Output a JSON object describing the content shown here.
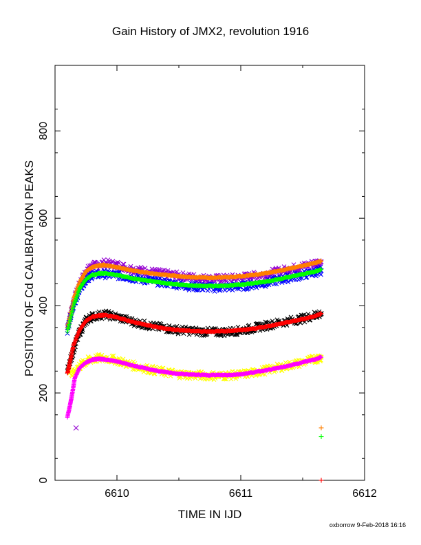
{
  "chart_data": {
    "type": "scatter",
    "title": "Gain History of JMX2, revolution 1916",
    "xlabel": "TIME IN IJD",
    "ylabel": "POSITION OF Cd CALIBRATION PEAKS",
    "xlim": [
      6609.5,
      6612
    ],
    "ylim": [
      0,
      950
    ],
    "xticks": [
      6610,
      6611,
      6612
    ],
    "yticks": [
      0,
      200,
      400,
      600,
      800
    ],
    "grid": false,
    "legend": "none",
    "series": [
      {
        "color": "#9400D3",
        "marker": "x",
        "x": [
          6609.6,
          6609.65,
          6609.7,
          6609.75,
          6609.8,
          6609.9,
          6610.0,
          6610.1,
          6610.2,
          6610.3,
          6610.4,
          6610.5,
          6610.6,
          6610.7,
          6610.8,
          6610.9,
          6611.0,
          6611.1,
          6611.2,
          6611.3,
          6611.4,
          6611.5,
          6611.6,
          6611.65
        ],
        "y": [
          350,
          410,
          450,
          478,
          490,
          497,
          493,
          485,
          480,
          476,
          472,
          468,
          465,
          462,
          461,
          462,
          464,
          468,
          472,
          478,
          484,
          490,
          497,
          500
        ]
      },
      {
        "color": "#0000FF",
        "marker": "x",
        "x": [
          6609.6,
          6609.65,
          6609.7,
          6609.75,
          6609.8,
          6609.9,
          6610.0,
          6610.1,
          6610.2,
          6610.3,
          6610.4,
          6610.5,
          6610.6,
          6610.7,
          6610.8,
          6610.9,
          6611.0,
          6611.1,
          6611.2,
          6611.3,
          6611.4,
          6611.5,
          6611.6,
          6611.65
        ],
        "y": [
          345,
          400,
          440,
          462,
          470,
          472,
          470,
          465,
          460,
          456,
          452,
          448,
          444,
          442,
          441,
          442,
          444,
          448,
          452,
          458,
          464,
          470,
          476,
          480
        ]
      },
      {
        "color": "#000000",
        "marker": "x",
        "x": [
          6609.6,
          6609.65,
          6609.7,
          6609.75,
          6609.8,
          6609.9,
          6610.0,
          6610.1,
          6610.2,
          6610.3,
          6610.4,
          6610.5,
          6610.6,
          6610.7,
          6610.8,
          6610.9,
          6611.0,
          6611.1,
          6611.2,
          6611.3,
          6611.4,
          6611.5,
          6611.6,
          6611.65
        ],
        "y": [
          250,
          300,
          340,
          365,
          375,
          380,
          374,
          365,
          358,
          352,
          348,
          344,
          342,
          340,
          339,
          340,
          343,
          348,
          354,
          360,
          365,
          370,
          378,
          382
        ]
      },
      {
        "color": "#FFFF00",
        "marker": "x",
        "x": [
          6609.62,
          6609.7,
          6609.75,
          6609.8,
          6609.9,
          6610.0,
          6610.1,
          6610.2,
          6610.3,
          6610.4,
          6610.5,
          6610.6,
          6610.7,
          6610.8,
          6610.9,
          6611.0,
          6611.1,
          6611.2,
          6611.3,
          6611.4,
          6611.5,
          6611.6,
          6611.65
        ],
        "y": [
          240,
          262,
          272,
          278,
          280,
          275,
          265,
          258,
          252,
          247,
          243,
          241,
          240,
          239,
          240,
          242,
          246,
          252,
          258,
          264,
          270,
          278,
          282
        ]
      },
      {
        "color": "#FF7F00",
        "marker": "+",
        "x": [
          6609.6,
          6609.65,
          6609.7,
          6609.75,
          6609.8,
          6609.85,
          6609.9,
          6610.0,
          6610.1,
          6610.2,
          6610.3,
          6610.4,
          6610.5,
          6610.6,
          6610.7,
          6610.8,
          6610.9,
          6611.0,
          6611.1,
          6611.2,
          6611.3,
          6611.4,
          6611.5,
          6611.6,
          6611.65
        ],
        "y": [
          350,
          415,
          455,
          478,
          488,
          492,
          493,
          488,
          482,
          477,
          473,
          470,
          467,
          465,
          464,
          464,
          465,
          467,
          470,
          474,
          479,
          485,
          491,
          498,
          502
        ]
      },
      {
        "color": "#00FF00",
        "marker": "+",
        "x": [
          6609.6,
          6609.65,
          6609.7,
          6609.75,
          6609.8,
          6609.85,
          6609.9,
          6610.0,
          6610.1,
          6610.2,
          6610.3,
          6610.4,
          6610.5,
          6610.6,
          6610.7,
          6610.8,
          6610.9,
          6611.0,
          6611.1,
          6611.2,
          6611.3,
          6611.4,
          6611.5,
          6611.6,
          6611.65
        ],
        "y": [
          340,
          400,
          440,
          460,
          470,
          473,
          474,
          470,
          464,
          459,
          455,
          451,
          448,
          446,
          445,
          445,
          446,
          448,
          451,
          455,
          460,
          466,
          472,
          478,
          483
        ]
      },
      {
        "color": "#FF0000",
        "marker": "+",
        "x": [
          6609.6,
          6609.62,
          6609.65,
          6609.7,
          6609.75,
          6609.8,
          6609.85,
          6609.9,
          6610.0,
          6610.1,
          6610.2,
          6610.3,
          6610.4,
          6610.5,
          6610.6,
          6610.7,
          6610.8,
          6610.9,
          6611.0,
          6611.1,
          6611.2,
          6611.3,
          6611.4,
          6611.5,
          6611.6,
          6611.65
        ],
        "y": [
          245,
          270,
          310,
          345,
          365,
          374,
          377,
          378,
          373,
          365,
          358,
          352,
          347,
          344,
          342,
          341,
          341,
          342,
          344,
          347,
          352,
          357,
          363,
          369,
          376,
          382
        ]
      },
      {
        "color": "#FF00FF",
        "marker": "+",
        "x": [
          6609.6,
          6609.62,
          6609.64,
          6609.66,
          6609.7,
          6609.75,
          6609.8,
          6609.85,
          6609.9,
          6610.0,
          6610.1,
          6610.2,
          6610.3,
          6610.4,
          6610.5,
          6610.6,
          6610.7,
          6610.8,
          6610.9,
          6611.0,
          6611.1,
          6611.2,
          6611.3,
          6611.4,
          6611.5,
          6611.6,
          6611.65
        ],
        "y": [
          145,
          170,
          200,
          235,
          258,
          270,
          276,
          278,
          277,
          272,
          265,
          258,
          252,
          247,
          244,
          242,
          241,
          241,
          241,
          243,
          247,
          252,
          257,
          263,
          270,
          277,
          282
        ]
      }
    ],
    "isolated_points": [
      {
        "x": 6609.67,
        "y": 120,
        "color": "#9400D3",
        "marker": "x"
      },
      {
        "x": 6611.65,
        "y": 120,
        "color": "#FF7F00",
        "marker": "+"
      },
      {
        "x": 6611.65,
        "y": 100,
        "color": "#00FF00",
        "marker": "+"
      },
      {
        "x": 6611.65,
        "y": 0,
        "color": "#FF0000",
        "marker": "+"
      }
    ]
  },
  "footer": "oxborrow  9-Feb-2018 16:16"
}
